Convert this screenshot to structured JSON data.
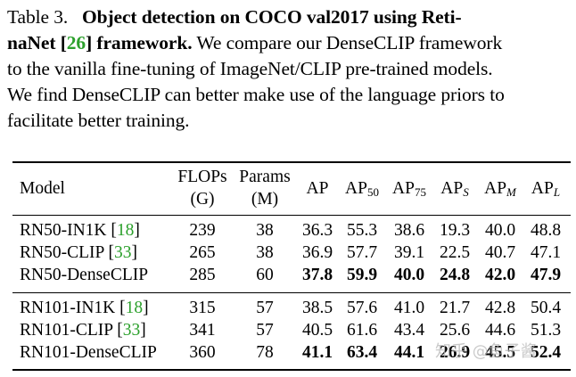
{
  "caption": {
    "label": "Table 3.",
    "title_bold_part1": "Object detection on COCO val2017 using Reti-",
    "title_bold_part2": "naNet [",
    "title_cite": "26",
    "title_bold_part3": "] framework.",
    "line2_rest": " We compare our DenseCLIP framework",
    "line3": "to the vanilla fine-tuning of ImageNet/CLIP pre-trained models.",
    "line4": "We find DenseCLIP can better make use of the language priors to",
    "line5": "facilitate better training."
  },
  "table": {
    "headers": {
      "model": "Model",
      "flops_line1": "FLOPs",
      "flops_line2": "(G)",
      "params_line1": "Params",
      "params_line2": "(M)",
      "ap": "AP",
      "ap50_base": "AP",
      "ap50_sub": "50",
      "ap75_base": "AP",
      "ap75_sub": "75",
      "aps_base": "AP",
      "aps_sub": "S",
      "apm_base": "AP",
      "apm_sub": "M",
      "apl_base": "AP",
      "apl_sub": "L"
    },
    "groups": [
      {
        "rows": [
          {
            "model": "RN50-IN1K [",
            "cite": "18",
            "model_end": "]",
            "flops": "239",
            "params": "38",
            "ap": "36.3",
            "ap50": "55.3",
            "ap75": "38.6",
            "aps": "19.3",
            "apm": "40.0",
            "apl": "48.8",
            "bold": false
          },
          {
            "model": "RN50-CLIP [",
            "cite": "33",
            "model_end": "]",
            "flops": "265",
            "params": "38",
            "ap": "36.9",
            "ap50": "57.7",
            "ap75": "39.1",
            "aps": "22.5",
            "apm": "40.7",
            "apl": "47.1",
            "bold": false
          },
          {
            "model": "RN50-DenseCLIP",
            "cite": "",
            "model_end": "",
            "flops": "285",
            "params": "60",
            "ap": "37.8",
            "ap50": "59.9",
            "ap75": "40.0",
            "aps": "24.8",
            "apm": "42.0",
            "apl": "47.9",
            "bold": true
          }
        ]
      },
      {
        "rows": [
          {
            "model": "RN101-IN1K [",
            "cite": "18",
            "model_end": "]",
            "flops": "315",
            "params": "57",
            "ap": "38.5",
            "ap50": "57.6",
            "ap75": "41.0",
            "aps": "21.7",
            "apm": "42.8",
            "apl": "50.4",
            "bold": false
          },
          {
            "model": "RN101-CLIP [",
            "cite": "33",
            "model_end": "]",
            "flops": "341",
            "params": "57",
            "ap": "40.5",
            "ap50": "61.6",
            "ap75": "43.4",
            "aps": "25.6",
            "apm": "44.6",
            "apl": "51.3",
            "bold": false
          },
          {
            "model": "RN101-DenseCLIP",
            "cite": "",
            "model_end": "",
            "flops": "360",
            "params": "78",
            "ap": "41.1",
            "ap50": "63.4",
            "ap75": "44.1",
            "aps": "26.9",
            "apm": "45.5",
            "apl": "52.4",
            "bold": true
          }
        ]
      }
    ]
  },
  "watermark": "知乎 @鱼子酱"
}
